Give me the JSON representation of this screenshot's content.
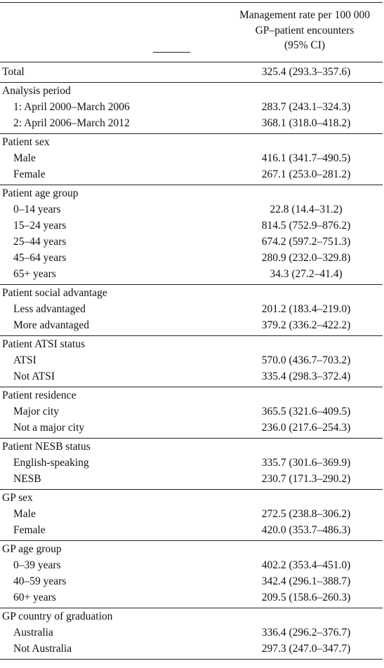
{
  "header": {
    "column_title": "Management rate per 100 000\nGP–patient encounters\n(95% CI)"
  },
  "groups": [
    {
      "heading": "Total",
      "heading_value": "325.4 (293.3–357.6)",
      "rows": []
    },
    {
      "heading": "Analysis period",
      "rows": [
        {
          "label": "1: April 2000–March 2006",
          "value": "283.7 (243.1–324.3)"
        },
        {
          "label": "2: April 2006–March 2012",
          "value": "368.1 (318.0–418.2)"
        }
      ]
    },
    {
      "heading": "Patient sex",
      "rows": [
        {
          "label": "Male",
          "value": "416.1 (341.7–490.5)"
        },
        {
          "label": "Female",
          "value": "267.1 (253.0–281.2)"
        }
      ]
    },
    {
      "heading": "Patient age group",
      "rows": [
        {
          "label": "0–14 years",
          "value": "22.8 (14.4–31.2)"
        },
        {
          "label": "15–24 years",
          "value": "814.5 (752.9–876.2)"
        },
        {
          "label": "25–44 years",
          "value": "674.2 (597.2–751.3)"
        },
        {
          "label": "45–64 years",
          "value": "280.9 (232.0–329.8)"
        },
        {
          "label": "65+ years",
          "value": "34.3 (27.2–41.4)"
        }
      ]
    },
    {
      "heading": "Patient social advantage",
      "rows": [
        {
          "label": "Less advantaged",
          "value": "201.2 (183.4–219.0)"
        },
        {
          "label": "More advantaged",
          "value": "379.2 (336.2–422.2)"
        }
      ]
    },
    {
      "heading": "Patient ATSI status",
      "rows": [
        {
          "label": "ATSI",
          "value": "570.0 (436.7–703.2)"
        },
        {
          "label": "Not ATSI",
          "value": "335.4 (298.3–372.4)"
        }
      ]
    },
    {
      "heading": "Patient residence",
      "rows": [
        {
          "label": "Major city",
          "value": "365.5 (321.6–409.5)"
        },
        {
          "label": "Not a major city",
          "value": "236.0 (217.6–254.3)"
        }
      ]
    },
    {
      "heading": "Patient NESB status",
      "rows": [
        {
          "label": "English-speaking",
          "value": "335.7 (301.6–369.9)"
        },
        {
          "label": "NESB",
          "value": "230.7 (171.3–290.2)"
        }
      ]
    },
    {
      "heading": "GP sex",
      "rows": [
        {
          "label": "Male",
          "value": "272.5 (238.8–306.2)"
        },
        {
          "label": "Female",
          "value": "420.0 (353.7–486.3)"
        }
      ]
    },
    {
      "heading": "GP age group",
      "rows": [
        {
          "label": "0–39 years",
          "value": "402.2 (353.4–451.0)"
        },
        {
          "label": "40–59 years",
          "value": "342.4 (296.1–388.7)"
        },
        {
          "label": "60+ years",
          "value": "209.5 (158.6–260.3)"
        }
      ]
    },
    {
      "heading": "GP country of graduation",
      "rows": [
        {
          "label": "Australia",
          "value": "336.4 (296.2–376.7)"
        },
        {
          "label": "Not Australia",
          "value": "297.3 (247.0–347.7)"
        }
      ]
    }
  ]
}
